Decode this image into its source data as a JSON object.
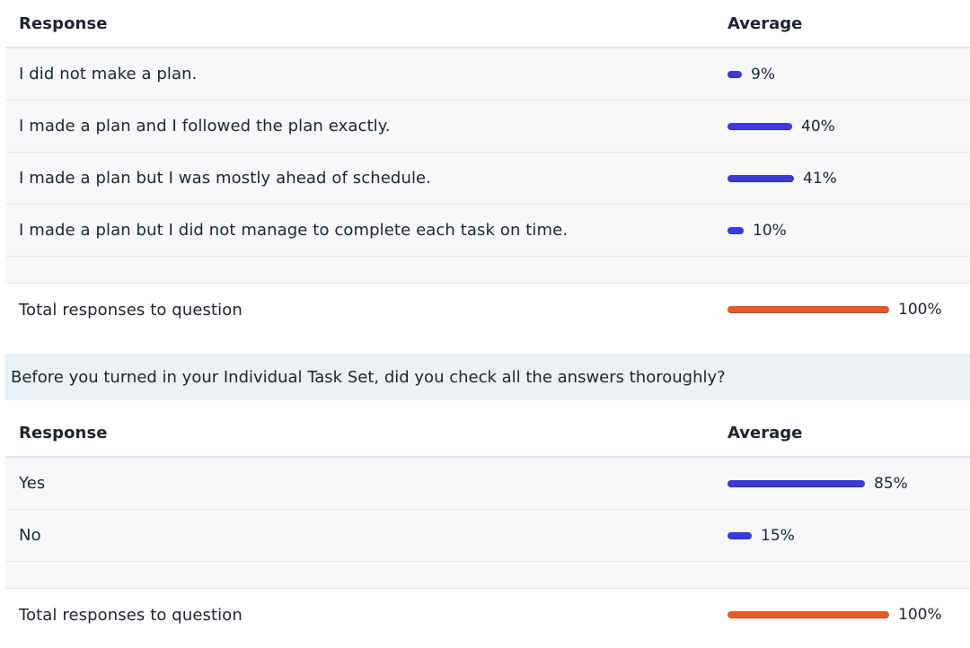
{
  "section1": {
    "header": {
      "response_label": "Response",
      "average_label": "Average"
    },
    "rows": [
      {
        "label": "I did not make a plan.",
        "percent_text": "9%",
        "percent": 9
      },
      {
        "label": "I made a plan and I followed the plan exactly.",
        "percent_text": "40%",
        "percent": 40
      },
      {
        "label": "I made a plan but I was mostly ahead of schedule.",
        "percent_text": "41%",
        "percent": 41
      },
      {
        "label": "I made a plan but I did not manage to complete each task on time.",
        "percent_text": "10%",
        "percent": 10
      }
    ],
    "total": {
      "label": "Total responses to question",
      "percent_text": "100%",
      "percent": 100
    }
  },
  "section2": {
    "question": "Before you turned in your Individual Task Set, did you check all the answers thoroughly?",
    "header": {
      "response_label": "Response",
      "average_label": "Average"
    },
    "rows": [
      {
        "label": "Yes",
        "percent_text": "85%",
        "percent": 85
      },
      {
        "label": "No",
        "percent_text": "15%",
        "percent": 15
      }
    ],
    "total": {
      "label": "Total responses to question",
      "percent_text": "100%",
      "percent": 100
    }
  },
  "colors": {
    "bar_response": "#3b3bdc",
    "bar_total": "#e35a2a",
    "question_bg": "#e8f2fb"
  }
}
